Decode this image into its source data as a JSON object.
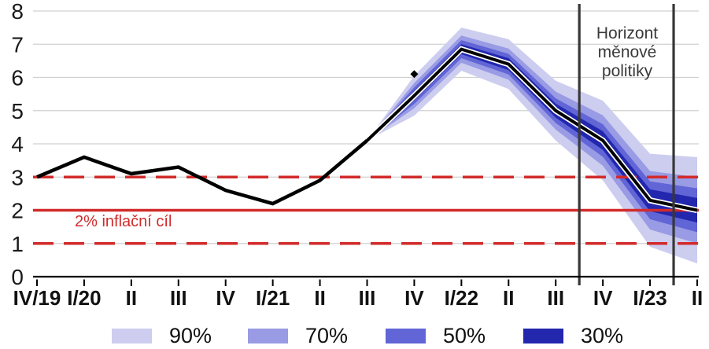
{
  "annotations": {
    "policy_horizon_label": "Horizont\nměnové\npolitiky",
    "inflation_target_label": "2% inflační cíl"
  },
  "colors": {
    "band_90": "#cdcdf0",
    "band_70": "#999be4",
    "band_50": "#6165d6",
    "band_30": "#2227ae",
    "target_red": "#d22b2b",
    "line_black": "#000000",
    "grid_gray": "#d0d0d0",
    "horizon_line_gray": "#373737",
    "axis_black": "#000000"
  },
  "legend": [
    {
      "label": "90%",
      "color": "#cdcdf0"
    },
    {
      "label": "70%",
      "color": "#999be4"
    },
    {
      "label": "50%",
      "color": "#6165d6"
    },
    {
      "label": "30%",
      "color": "#2227ae"
    }
  ],
  "chart_data": {
    "type": "line",
    "subtype": "fan-chart",
    "categories": [
      "IV/19",
      "I/20",
      "II",
      "III",
      "IV",
      "I/21",
      "II",
      "III",
      "IV",
      "I/22",
      "II",
      "III",
      "IV",
      "I/23",
      "II"
    ],
    "ylim": [
      0,
      8
    ],
    "yticks": [
      0,
      1,
      2,
      3,
      4,
      5,
      6,
      7,
      8
    ],
    "grid": "horizontal",
    "series": [
      {
        "name": "inflation-line",
        "values": [
          3.0,
          3.6,
          3.1,
          3.3,
          2.6,
          2.2,
          2.9,
          4.1,
          5.45,
          6.85,
          6.4,
          5.0,
          4.1,
          2.3,
          2.0
        ]
      }
    ],
    "forecast_start_index": 7,
    "fan_bands": [
      {
        "coverage": "90%",
        "color": "#cdcdf0",
        "half_widths": [
          0,
          0.6,
          0.65,
          0.75,
          0.9,
          1.2,
          1.4,
          1.6
        ]
      },
      {
        "coverage": "70%",
        "color": "#999be4",
        "half_widths": [
          0,
          0.38,
          0.41,
          0.47,
          0.57,
          0.76,
          0.88,
          1.0
        ]
      },
      {
        "coverage": "50%",
        "color": "#6165d6",
        "half_widths": [
          0,
          0.25,
          0.27,
          0.31,
          0.37,
          0.49,
          0.57,
          0.66
        ]
      },
      {
        "coverage": "30%",
        "color": "#2227ae",
        "half_widths": [
          0,
          0.14,
          0.15,
          0.18,
          0.21,
          0.28,
          0.33,
          0.37
        ]
      }
    ],
    "point_marker": {
      "category_index": 8,
      "value": 6.1
    },
    "inflation_target": 2,
    "tolerance_band": [
      1,
      3
    ],
    "policy_horizon_positions": [
      11.5,
      13.5
    ],
    "legend_position": "bottom"
  }
}
